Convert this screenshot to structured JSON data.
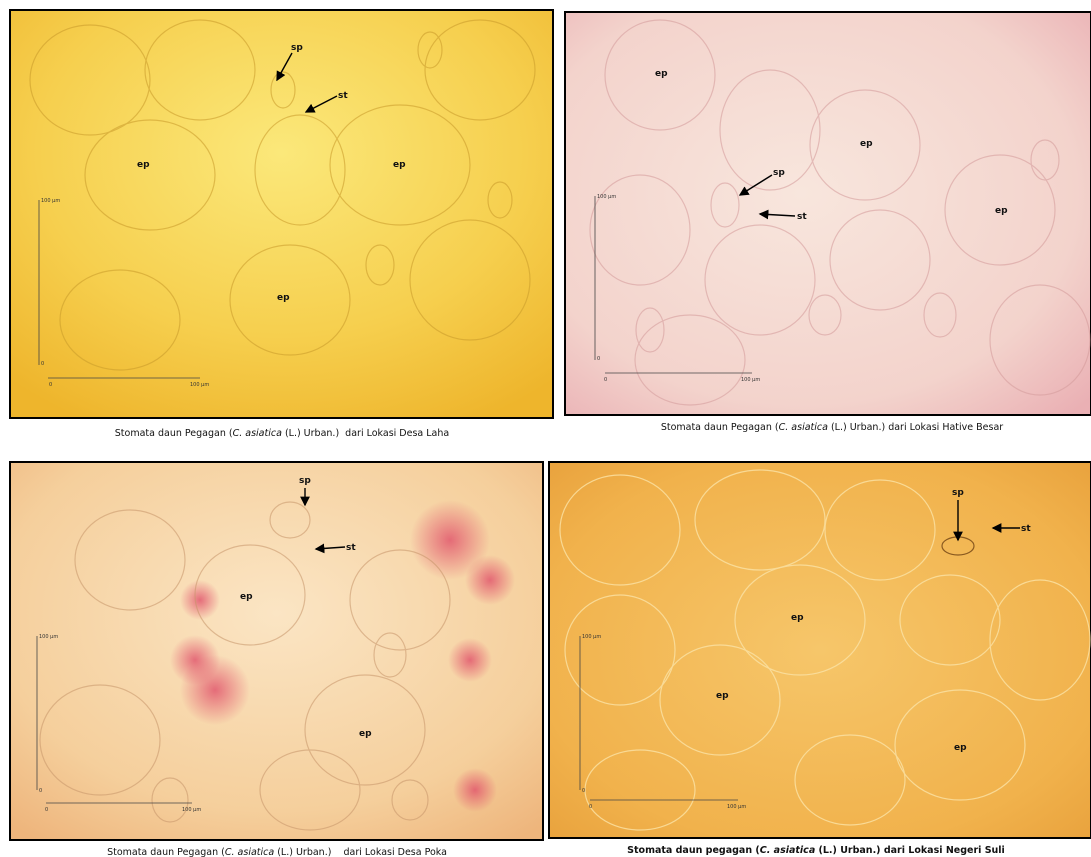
{
  "panels": [
    {
      "labels": [
        "sp",
        "st",
        "ep",
        "ep",
        "ep"
      ],
      "scale": [
        "100 µm",
        "0",
        "0",
        "100 µm"
      ],
      "caption": [
        "Stomata daun Pegagan (",
        "C. asiatica",
        " (L.) Urban.)  dari Lokasi Desa Laha"
      ]
    },
    {
      "labels": [
        "ep",
        "ep",
        "ep",
        "sp",
        "st"
      ],
      "scale": [
        "100 µm",
        "0",
        "0",
        "100 µm"
      ],
      "caption": [
        "Stomata daun Pegagan (",
        "C. asiatica",
        " (L.) Urban.) dari Lokasi Hative Besar"
      ]
    },
    {
      "labels": [
        "sp",
        "st",
        "ep",
        "ep"
      ],
      "scale": [
        "100 µm",
        "0",
        "0",
        "100 µm"
      ],
      "caption": [
        "Stomata daun Pegagan (",
        "C. asiatica",
        " (L.) Urban.)    dari Lokasi Desa Poka"
      ]
    },
    {
      "labels": [
        "sp",
        "st",
        "ep",
        "ep",
        "ep"
      ],
      "scale": [
        "100 µm",
        "0",
        "0",
        "100 µm"
      ],
      "caption": [
        "Stomata daun pegagan (",
        "C. asiatica",
        " (L.) Urban.) dari Lokasi Negeri Suli"
      ]
    }
  ]
}
